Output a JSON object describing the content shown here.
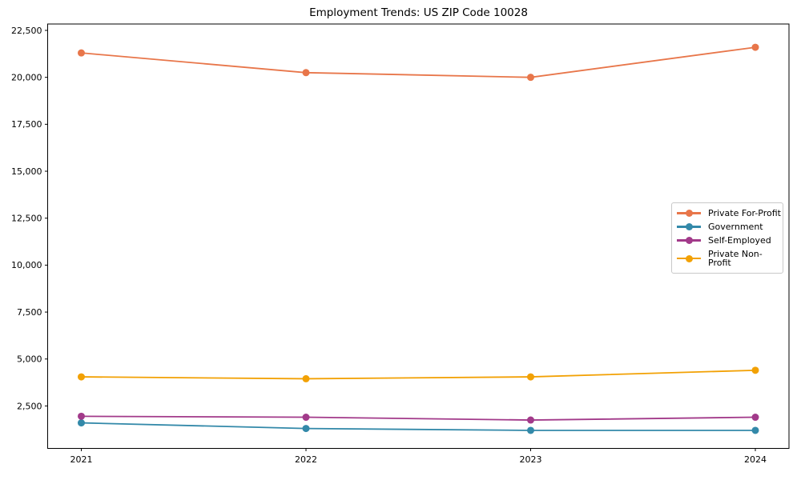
{
  "chart_data": {
    "type": "line",
    "title": "Employment Trends: US ZIP Code 10028",
    "categories": [
      "2021",
      "2022",
      "2023",
      "2024"
    ],
    "series": [
      {
        "name": "Private For-Profit",
        "color": "#e8764a",
        "values": [
          21300,
          20250,
          20000,
          21600
        ]
      },
      {
        "name": "Government",
        "color": "#3389a9",
        "values": [
          1600,
          1300,
          1200,
          1200
        ]
      },
      {
        "name": "Self-Employed",
        "color": "#a23a8a",
        "values": [
          1950,
          1900,
          1750,
          1900
        ]
      },
      {
        "name": "Private Non-Profit",
        "color": "#f2a104",
        "values": [
          4050,
          3950,
          4050,
          4400
        ]
      }
    ],
    "yticks": {
      "values": [
        2500,
        5000,
        7500,
        10000,
        12500,
        15000,
        17500,
        20000,
        22500
      ],
      "labels": [
        "2,500",
        "5,000",
        "7,500",
        "10,000",
        "12,500",
        "15,000",
        "17,500",
        "20,000",
        "22,500"
      ]
    },
    "xlabel": "",
    "ylabel": "",
    "ylim": [
      240,
      22840
    ],
    "grid": false,
    "legend_position": "center right",
    "marker": "circle",
    "frame_color": "#000000",
    "text_color": "#000000"
  }
}
